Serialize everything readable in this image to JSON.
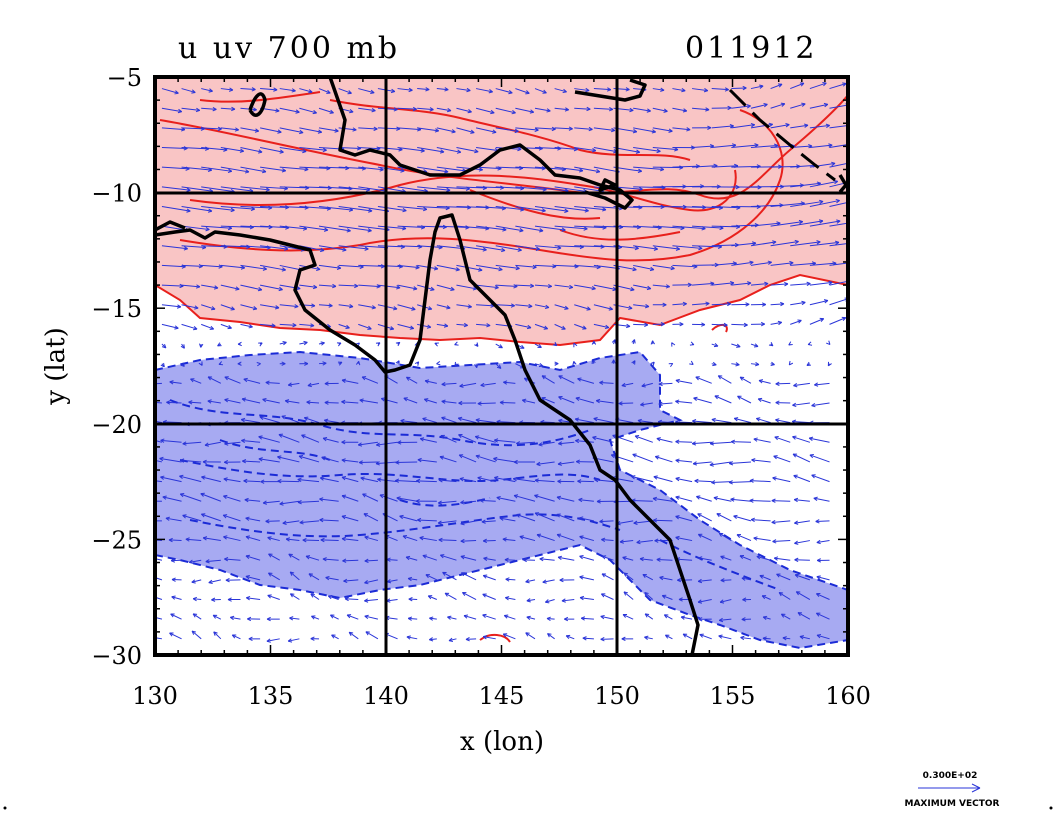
{
  "title": {
    "left": "u  uv  700  mb",
    "right": "011912"
  },
  "axes": {
    "xlabel": "x (lon)",
    "ylabel": "y (lat)",
    "xlim": [
      130,
      160
    ],
    "ylim": [
      -30,
      -5
    ],
    "xticks": [
      "130",
      "135",
      "140",
      "145",
      "150",
      "155",
      "160"
    ],
    "yticks": [
      "−5",
      "−10",
      "−15",
      "−20",
      "−25",
      "−30"
    ],
    "gridlines_lon": [
      140,
      150
    ],
    "gridlines_lat": [
      -10,
      -20
    ]
  },
  "vector_key": {
    "value_label": "0.300E+02",
    "caption": "MAXIMUM VECTOR"
  },
  "colors": {
    "positive_line": "#e8201c",
    "positive_fill": "#f9c5c5",
    "negative_line": "#1b2bd6",
    "negative_fill": "#a7aaf2",
    "vector": "#2a35d8",
    "coast": "#000000"
  }
}
